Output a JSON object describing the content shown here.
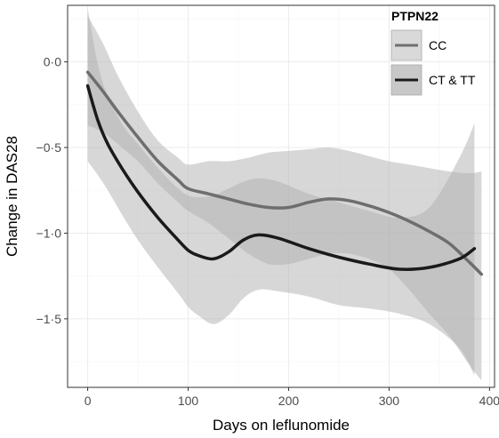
{
  "chart_data": {
    "type": "line",
    "xlabel": "Days on leflunomide",
    "ylabel": "Change in DAS28",
    "xlim": [
      -20,
      405
    ],
    "ylim": [
      -1.9,
      0.33
    ],
    "x_ticks": [
      0,
      100,
      200,
      300,
      400
    ],
    "y_ticks": [
      0.0,
      -0.5,
      -1.0,
      -1.5
    ],
    "y_tick_labels": [
      "0·0",
      "−0·5",
      "−1·0",
      "−1·5"
    ],
    "grid": true,
    "legend": {
      "title": "PTPN22",
      "position": "top-right"
    },
    "series": [
      {
        "name": "CC",
        "color": "#6e6e6e",
        "x": [
          0,
          15,
          30,
          50,
          70,
          90,
          100,
          120,
          140,
          160,
          180,
          200,
          220,
          240,
          260,
          280,
          300,
          320,
          340,
          360,
          380,
          392
        ],
        "y": [
          -0.06,
          -0.17,
          -0.29,
          -0.44,
          -0.58,
          -0.69,
          -0.74,
          -0.77,
          -0.8,
          -0.83,
          -0.85,
          -0.85,
          -0.82,
          -0.8,
          -0.81,
          -0.84,
          -0.88,
          -0.93,
          -0.99,
          -1.06,
          -1.17,
          -1.24
        ],
        "lower": [
          -0.37,
          -0.41,
          -0.48,
          -0.58,
          -0.71,
          -0.82,
          -0.87,
          -0.94,
          -1.03,
          -1.12,
          -1.18,
          -1.18,
          -1.15,
          -1.12,
          -1.12,
          -1.15,
          -1.21,
          -1.33,
          -1.47,
          -1.6,
          -1.77,
          -1.86
        ],
        "upper": [
          0.27,
          0.11,
          -0.08,
          -0.29,
          -0.46,
          -0.56,
          -0.6,
          -0.58,
          -0.58,
          -0.56,
          -0.53,
          -0.52,
          -0.51,
          -0.5,
          -0.52,
          -0.55,
          -0.58,
          -0.6,
          -0.62,
          -0.64,
          -0.65,
          -0.64
        ]
      },
      {
        "name": "CT & TT",
        "color": "#1a1a1a",
        "x": [
          0,
          10,
          20,
          35,
          50,
          70,
          90,
          100,
          110,
          125,
          140,
          155,
          170,
          190,
          220,
          250,
          280,
          310,
          340,
          370,
          385
        ],
        "y": [
          -0.14,
          -0.34,
          -0.48,
          -0.63,
          -0.76,
          -0.91,
          -1.04,
          -1.1,
          -1.13,
          -1.15,
          -1.11,
          -1.04,
          -1.01,
          -1.03,
          -1.09,
          -1.14,
          -1.18,
          -1.21,
          -1.2,
          -1.15,
          -1.09
        ],
        "lower": [
          -0.58,
          -0.66,
          -0.75,
          -0.9,
          -1.04,
          -1.2,
          -1.35,
          -1.43,
          -1.48,
          -1.53,
          -1.48,
          -1.38,
          -1.33,
          -1.34,
          -1.37,
          -1.42,
          -1.44,
          -1.47,
          -1.53,
          -1.67,
          -1.83
        ],
        "upper": [
          0.31,
          -0.01,
          -0.2,
          -0.37,
          -0.48,
          -0.62,
          -0.74,
          -0.78,
          -0.79,
          -0.78,
          -0.74,
          -0.7,
          -0.68,
          -0.7,
          -0.77,
          -0.82,
          -0.87,
          -0.91,
          -0.85,
          -0.56,
          -0.36
        ]
      }
    ]
  }
}
